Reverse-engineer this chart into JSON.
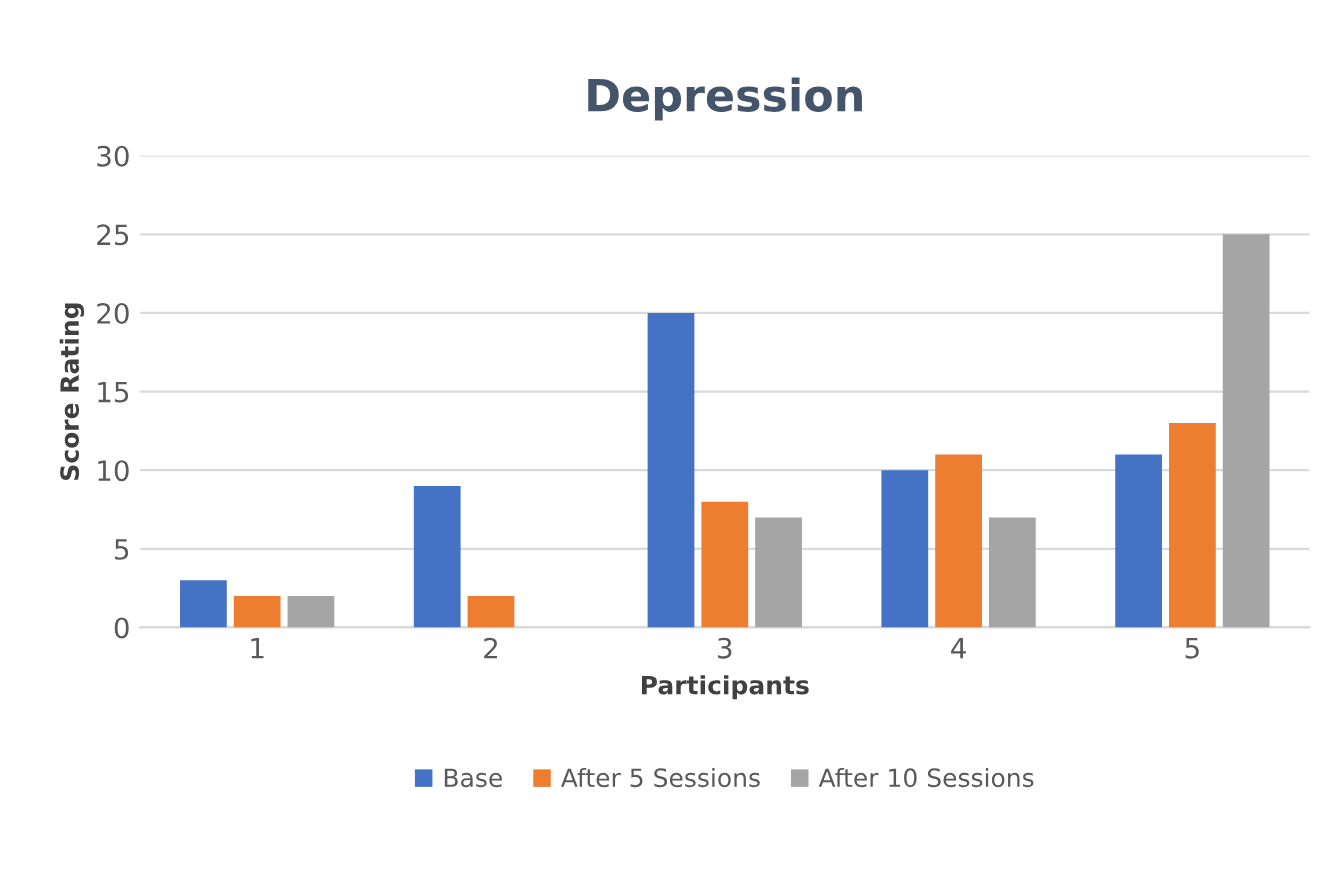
{
  "chart_data": {
    "type": "bar",
    "title": "Depression",
    "xlabel": "Participants",
    "ylabel": "Score Rating",
    "categories": [
      "1",
      "2",
      "3",
      "4",
      "5"
    ],
    "series": [
      {
        "name": "Base",
        "color": "#4472c4",
        "values": [
          3,
          9,
          20,
          10,
          11
        ]
      },
      {
        "name": "After 5 Sessions",
        "color": "#ed7d31",
        "values": [
          2,
          2,
          8,
          11,
          13
        ]
      },
      {
        "name": "After 10 Sessions",
        "color": "#a5a5a5",
        "values": [
          2,
          0,
          7,
          7,
          25
        ]
      }
    ],
    "ylim": [
      0,
      30
    ],
    "yticks": [
      0,
      5,
      10,
      15,
      20,
      25,
      30
    ],
    "grid": "y",
    "legend": "bottom"
  }
}
